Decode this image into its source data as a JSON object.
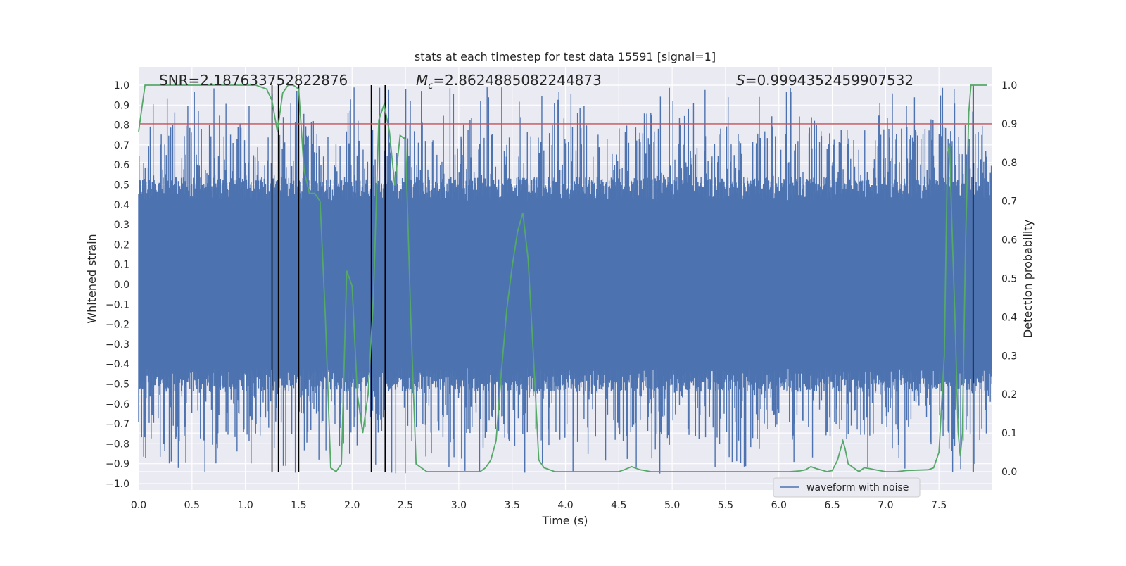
{
  "chart_data": {
    "type": "line",
    "title": "stats at each timestep for test data 15591 [signal=1]",
    "xlabel": "Time (s)",
    "ylabel": "Whitened strain",
    "y2label": "Detection probability",
    "xlim": [
      0,
      8
    ],
    "ylim": [
      -1.05,
      1.05
    ],
    "y2lim": [
      -0.05,
      1.0
    ],
    "grid": true,
    "legend_position": "bottom-right",
    "x_ticks": [
      "0.0",
      "0.5",
      "1.0",
      "1.5",
      "2.0",
      "2.5",
      "3.0",
      "3.5",
      "4.0",
      "4.5",
      "5.0",
      "5.5",
      "6.0",
      "6.5",
      "7.0",
      "7.5"
    ],
    "x_tick_values": [
      0,
      0.5,
      1,
      1.5,
      2,
      2.5,
      3,
      3.5,
      4,
      4.5,
      5,
      5.5,
      6,
      6.5,
      7,
      7.5
    ],
    "y_ticks": [
      "1.0",
      "0.9",
      "0.8",
      "0.7",
      "0.6",
      "0.5",
      "0.4",
      "0.3",
      "0.2",
      "0.1",
      "0.0",
      "−0.1",
      "−0.2",
      "−0.3",
      "−0.4",
      "−0.5",
      "−0.6",
      "−0.7",
      "−0.8",
      "−0.9",
      "−1.0"
    ],
    "y_tick_values": [
      1,
      0.9,
      0.8,
      0.7,
      0.6,
      0.5,
      0.4,
      0.3,
      0.2,
      0.1,
      0,
      -0.1,
      -0.2,
      -0.3,
      -0.4,
      -0.5,
      -0.6,
      -0.7,
      -0.8,
      -0.9,
      -1.0
    ],
    "y2_ticks": [
      "1.0",
      "0.9",
      "0.8",
      "0.7",
      "0.6",
      "0.5",
      "0.4",
      "0.3",
      "0.2",
      "0.1",
      "0.0"
    ],
    "y2_tick_values": [
      1,
      0.9,
      0.8,
      0.7,
      0.6,
      0.5,
      0.4,
      0.3,
      0.2,
      0.1,
      0
    ],
    "annotations": {
      "snr": "SNR=2.187633752822876",
      "mc_symbol": "M",
      "mc_sub": "c",
      "mc_value": "=2.8624885082244873",
      "s_symbol": "S",
      "s_value": "=0.9994352459907532"
    },
    "threshold": 0.9,
    "detection_lines_x": [
      1.25,
      1.31,
      1.5,
      2.18,
      2.31,
      7.82
    ],
    "series": [
      {
        "name": "waveform with noise",
        "color": "#4c72b0",
        "kind": "noisy waveform",
        "amplitude_envelope": [
          0.45,
          0.55
        ],
        "peak_extent": [
          -0.95,
          0.99
        ]
      },
      {
        "color": "#55a868",
        "axis": "right",
        "x": [
          0.0,
          0.06,
          0.12,
          0.2,
          0.4,
          0.6,
          0.8,
          1.0,
          1.1,
          1.2,
          1.25,
          1.3,
          1.35,
          1.4,
          1.45,
          1.5,
          1.55,
          1.6,
          1.65,
          1.7,
          1.75,
          1.8,
          1.85,
          1.9,
          1.95,
          2.0,
          2.05,
          2.1,
          2.15,
          2.2,
          2.25,
          2.3,
          2.35,
          2.4,
          2.45,
          2.5,
          2.55,
          2.6,
          2.65,
          2.7,
          2.8,
          2.9,
          3.0,
          3.1,
          3.2,
          3.25,
          3.3,
          3.35,
          3.4,
          3.45,
          3.5,
          3.55,
          3.6,
          3.65,
          3.7,
          3.75,
          3.8,
          3.9,
          4.0,
          4.2,
          4.4,
          4.5,
          4.55,
          4.62,
          4.7,
          4.8,
          5.0,
          5.2,
          5.4,
          5.6,
          5.8,
          6.0,
          6.1,
          6.2,
          6.25,
          6.3,
          6.35,
          6.4,
          6.45,
          6.5,
          6.55,
          6.6,
          6.62,
          6.65,
          6.7,
          6.75,
          6.8,
          6.85,
          6.9,
          7.0,
          7.1,
          7.2,
          7.3,
          7.4,
          7.45,
          7.5,
          7.55,
          7.58,
          7.6,
          7.62,
          7.65,
          7.68,
          7.7,
          7.72,
          7.75,
          7.78,
          7.8,
          7.84,
          7.9,
          7.95
        ],
        "values": [
          0.88,
          1.0,
          1.0,
          1.0,
          1.0,
          1.0,
          1.0,
          1.0,
          1.0,
          0.99,
          0.96,
          0.88,
          0.98,
          1.0,
          1.0,
          0.99,
          0.78,
          0.72,
          0.72,
          0.7,
          0.4,
          0.01,
          0.0,
          0.02,
          0.52,
          0.48,
          0.2,
          0.1,
          0.2,
          0.45,
          0.91,
          0.95,
          0.88,
          0.74,
          0.87,
          0.86,
          0.4,
          0.02,
          0.01,
          0.0,
          0.0,
          0.0,
          0.0,
          0.0,
          0.0,
          0.01,
          0.03,
          0.08,
          0.26,
          0.42,
          0.53,
          0.62,
          0.67,
          0.55,
          0.3,
          0.03,
          0.01,
          0.0,
          0.0,
          0.0,
          0.0,
          0.0,
          0.005,
          0.013,
          0.005,
          0.0,
          0.0,
          0.0,
          0.0,
          0.0,
          0.0,
          0.0,
          0.0,
          0.002,
          0.005,
          0.013,
          0.008,
          0.004,
          0.0,
          0.003,
          0.03,
          0.08,
          0.06,
          0.02,
          0.01,
          0.0,
          0.01,
          0.008,
          0.005,
          0.0,
          0.0,
          0.003,
          0.004,
          0.005,
          0.01,
          0.05,
          0.3,
          0.82,
          0.85,
          0.65,
          0.4,
          0.1,
          0.04,
          0.1,
          0.6,
          0.93,
          1.0,
          1.0,
          1.0,
          1.0
        ]
      }
    ]
  }
}
